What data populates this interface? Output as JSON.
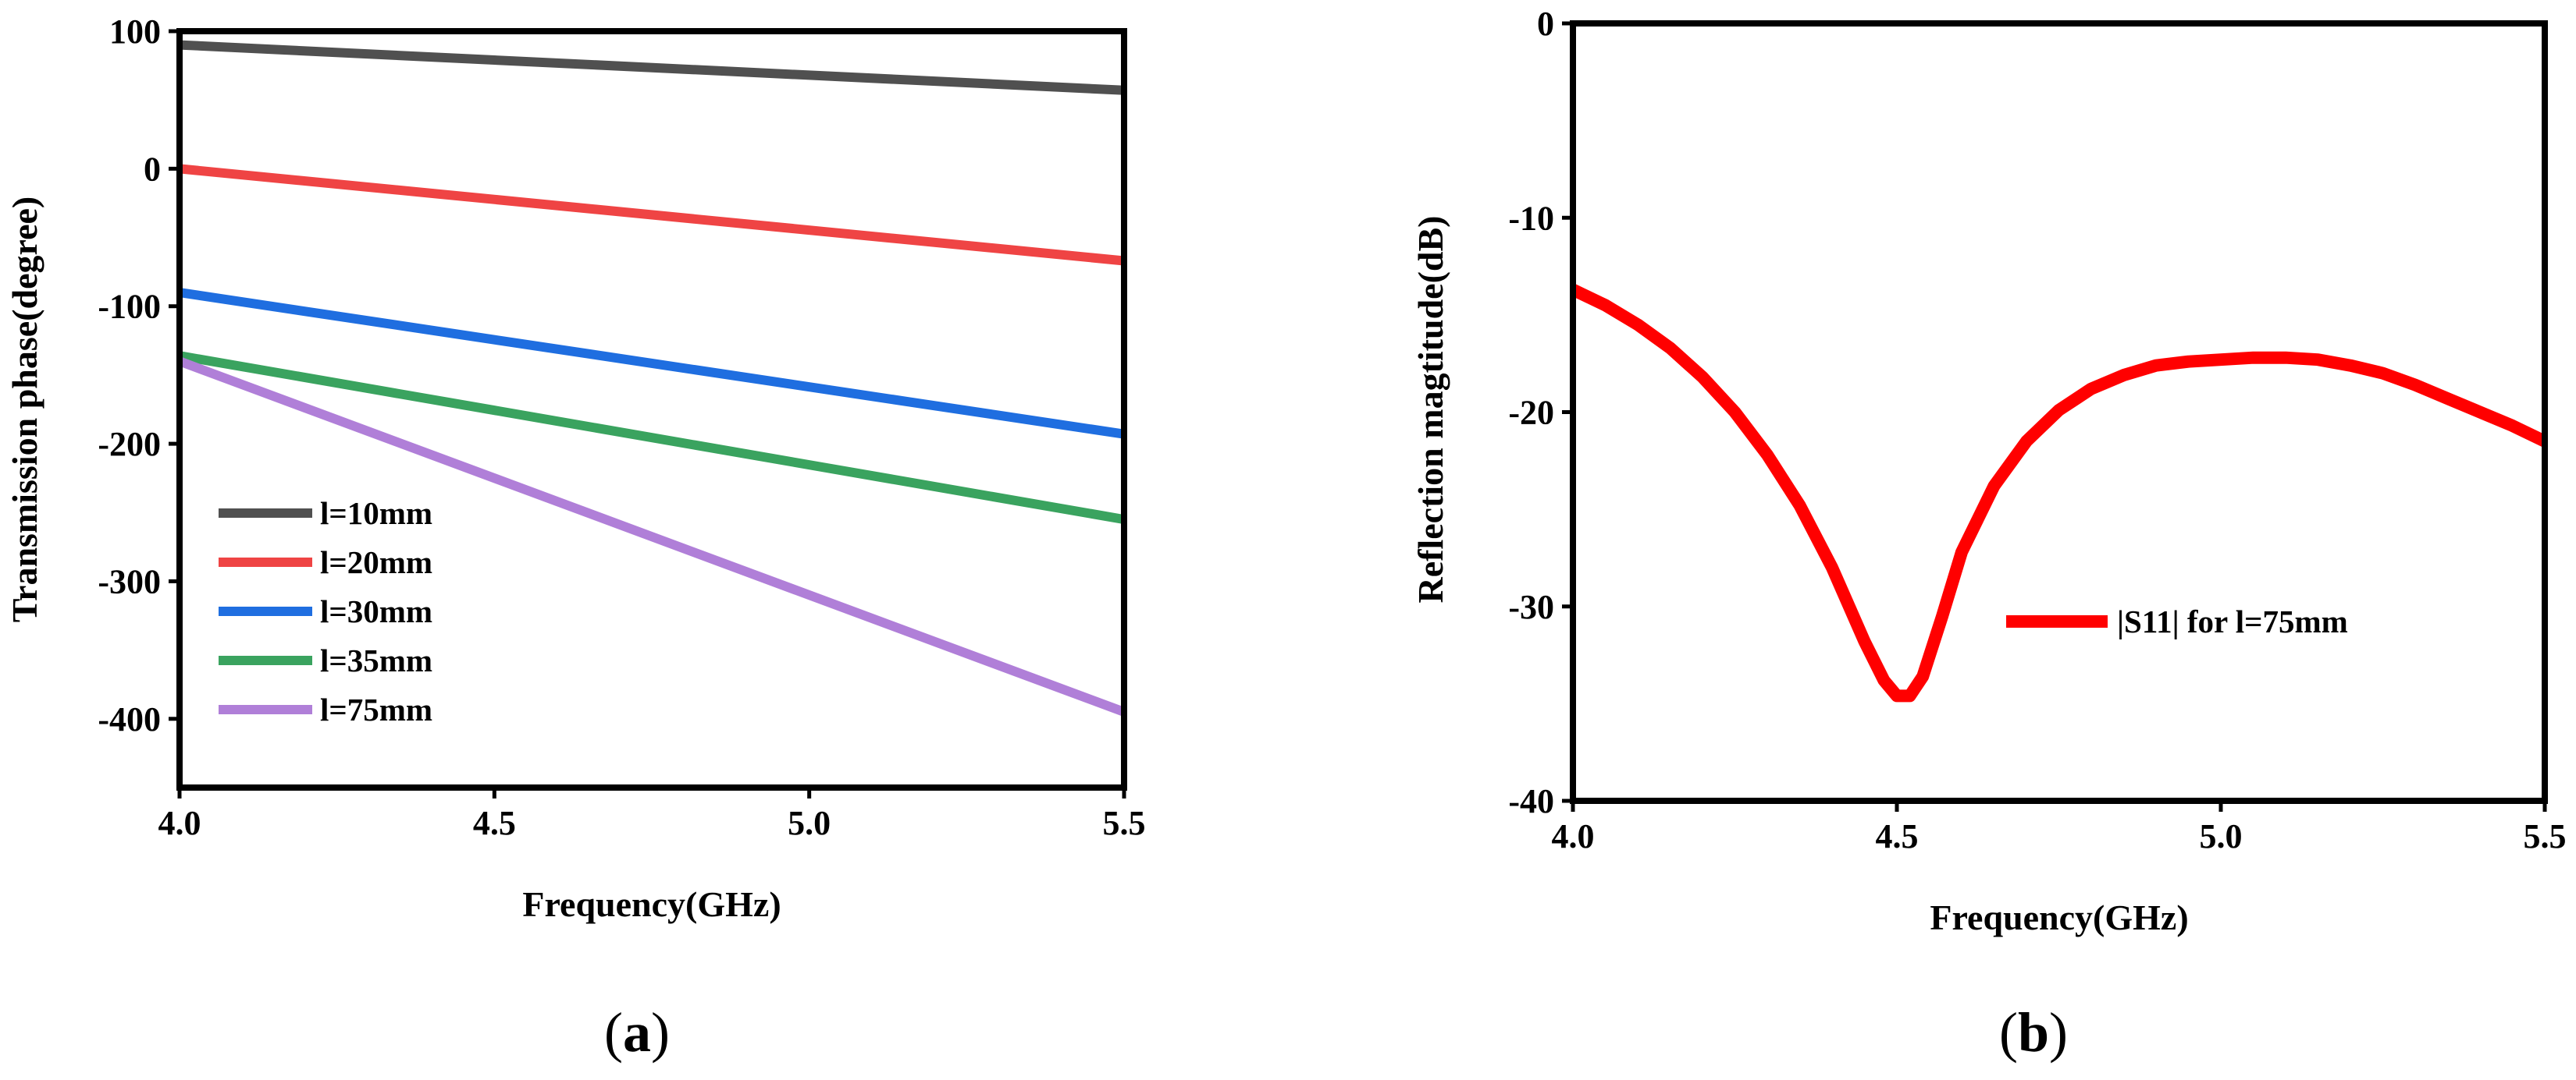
{
  "chart_data": [
    {
      "type": "line",
      "panel_label_open": "(",
      "panel_label_letter": "a",
      "panel_label_close": ")",
      "xlabel": "Frequency(GHz)",
      "ylabel": "Transmission phase(degree)",
      "xlim": [
        4.0,
        5.5
      ],
      "ylim": [
        -450,
        100
      ],
      "xticks": [
        "4.0",
        "4.5",
        "5.0",
        "5.5"
      ],
      "yticks": [
        "100",
        "0",
        "-100",
        "-200",
        "-300",
        "-400"
      ],
      "legend_position": "bottom-left",
      "series": [
        {
          "name": "l=10mm",
          "color": "#505050",
          "x": [
            4.0,
            5.5
          ],
          "y": [
            90,
            57
          ]
        },
        {
          "name": "l=20mm",
          "color": "#ef4444",
          "x": [
            4.0,
            5.5
          ],
          "y": [
            0,
            -67
          ]
        },
        {
          "name": "l=30mm",
          "color": "#1f6ee0",
          "x": [
            4.0,
            5.5
          ],
          "y": [
            -90,
            -193
          ]
        },
        {
          "name": "l=35mm",
          "color": "#3aa35f",
          "x": [
            4.0,
            5.5
          ],
          "y": [
            -136,
            -255
          ]
        },
        {
          "name": "l=75mm",
          "color": "#b07fd8",
          "x": [
            4.0,
            5.5
          ],
          "y": [
            -140,
            -395
          ]
        }
      ]
    },
    {
      "type": "line",
      "panel_label_open": "(",
      "panel_label_letter": "b",
      "panel_label_close": ")",
      "xlabel": "Frequency(GHz)",
      "ylabel": "Reflection magtitude(dB)",
      "xlim": [
        4.0,
        5.5
      ],
      "ylim": [
        -40,
        0
      ],
      "xticks": [
        "4.0",
        "4.5",
        "5.0",
        "5.5"
      ],
      "yticks": [
        "0",
        "-10",
        "-20",
        "-30",
        "-40"
      ],
      "legend_position": "center-right",
      "series": [
        {
          "name": "|S11| for l=75mm",
          "color": "#ff0000",
          "x": [
            4.0,
            4.05,
            4.1,
            4.15,
            4.2,
            4.25,
            4.3,
            4.35,
            4.4,
            4.45,
            4.48,
            4.5,
            4.52,
            4.54,
            4.57,
            4.6,
            4.65,
            4.7,
            4.75,
            4.8,
            4.85,
            4.9,
            4.95,
            5.0,
            5.05,
            5.1,
            5.15,
            5.2,
            5.25,
            5.3,
            5.35,
            5.4,
            5.45,
            5.5
          ],
          "y": [
            -13.7,
            -14.5,
            -15.5,
            -16.7,
            -18.2,
            -20.0,
            -22.2,
            -24.8,
            -28.0,
            -31.8,
            -33.8,
            -34.6,
            -34.6,
            -33.6,
            -30.5,
            -27.2,
            -23.8,
            -21.5,
            -19.9,
            -18.8,
            -18.1,
            -17.6,
            -17.4,
            -17.3,
            -17.2,
            -17.2,
            -17.3,
            -17.6,
            -18.0,
            -18.6,
            -19.3,
            -20.0,
            -20.7,
            -21.5
          ]
        }
      ]
    }
  ]
}
